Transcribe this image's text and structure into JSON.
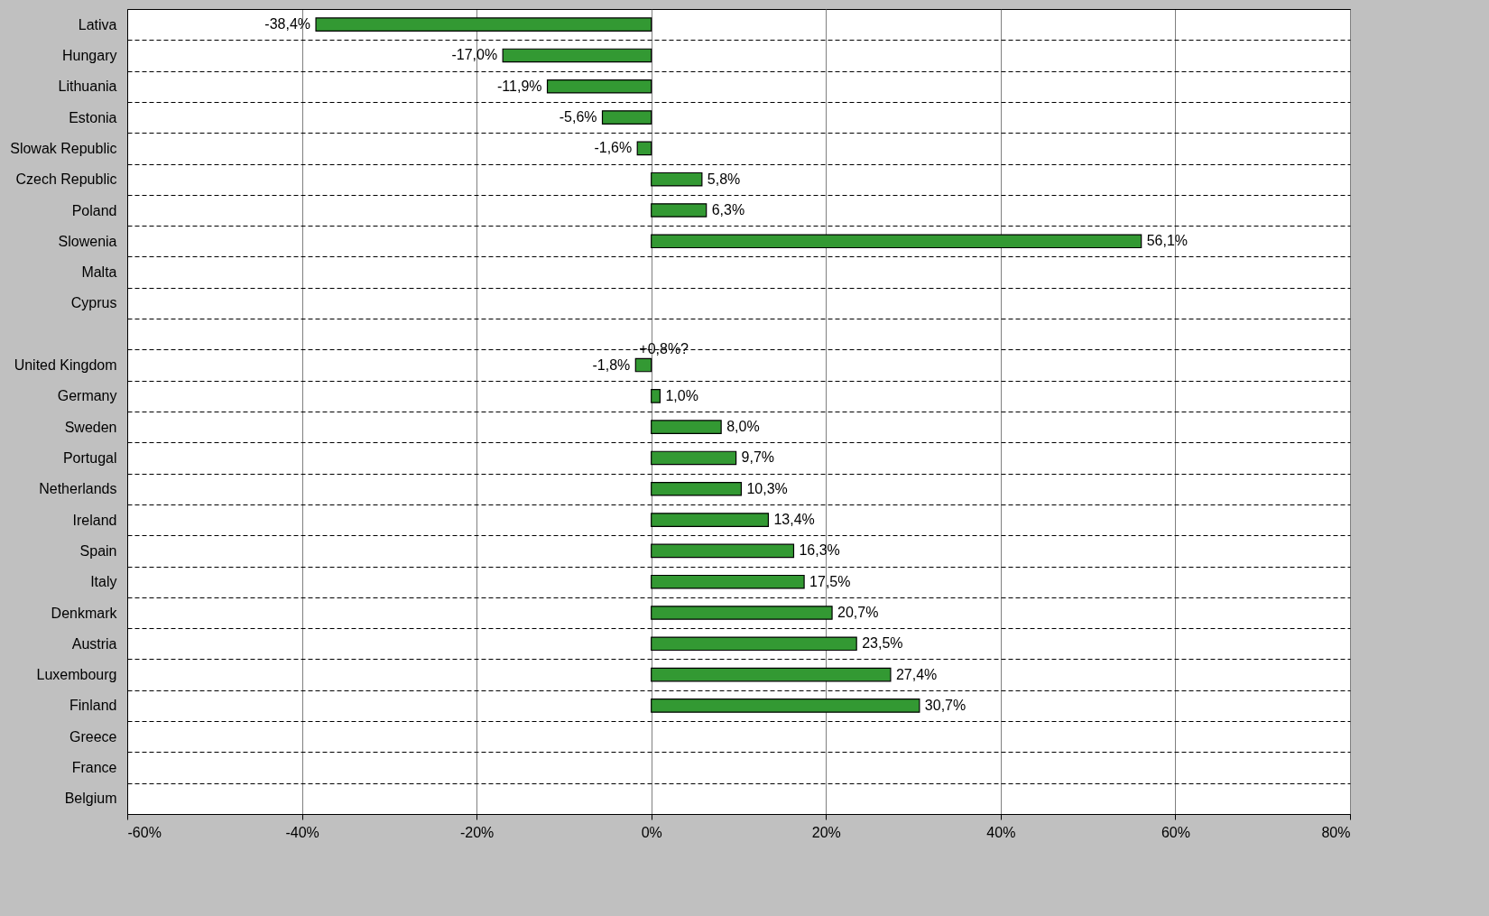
{
  "chart_data": {
    "type": "bar",
    "orientation": "horizontal",
    "categories": [
      "Lativa",
      "Hungary",
      "Lithuania",
      "Estonia",
      "Slowak Republic",
      "Czech Republic",
      "Poland",
      "Slowenia",
      "Malta",
      "Cyprus",
      null,
      "United Kingdom",
      "Germany",
      "Sweden",
      "Portugal",
      "Netherlands",
      "Ireland",
      "Spain",
      "Italy",
      "Denkmark",
      "Austria",
      "Luxembourg",
      "Finland",
      "Greece",
      "France",
      "Belgium"
    ],
    "values": [
      -38.4,
      -17.0,
      -11.9,
      -5.6,
      -1.6,
      5.8,
      6.3,
      56.1,
      null,
      null,
      null,
      -1.8,
      1.0,
      8.0,
      9.7,
      10.3,
      13.4,
      16.3,
      17.5,
      20.7,
      23.5,
      27.4,
      30.7,
      null,
      null,
      null
    ],
    "value_labels": [
      "-38,4%",
      "-17,0%",
      "-11,9%",
      "-5,6%",
      "-1,6%",
      "5,8%",
      "6,3%",
      "56,1%",
      null,
      null,
      null,
      "-1,8%",
      "1,0%",
      "8,0%",
      "9,7%",
      "10,3%",
      "13,4%",
      "16,3%",
      "17,5%",
      "20,7%",
      "23,5%",
      "27,4%",
      "30,7%",
      null,
      null,
      null
    ],
    "color": "#339933",
    "xlim": [
      -60,
      80
    ],
    "xticks": [
      {
        "value": -60,
        "label": "-60%"
      },
      {
        "value": -40,
        "label": "-40%"
      },
      {
        "value": -20,
        "label": "-20%"
      },
      {
        "value": 0,
        "label": "0%"
      },
      {
        "value": 20,
        "label": "20%"
      },
      {
        "value": 40,
        "label": "40%"
      },
      {
        "value": 60,
        "label": "60%"
      },
      {
        "value": 80,
        "label": "80%"
      }
    ],
    "annotations": [
      {
        "text": "+0,8%?",
        "x": -1.8,
        "y": "United Kingdom"
      }
    ],
    "grid": true
  }
}
